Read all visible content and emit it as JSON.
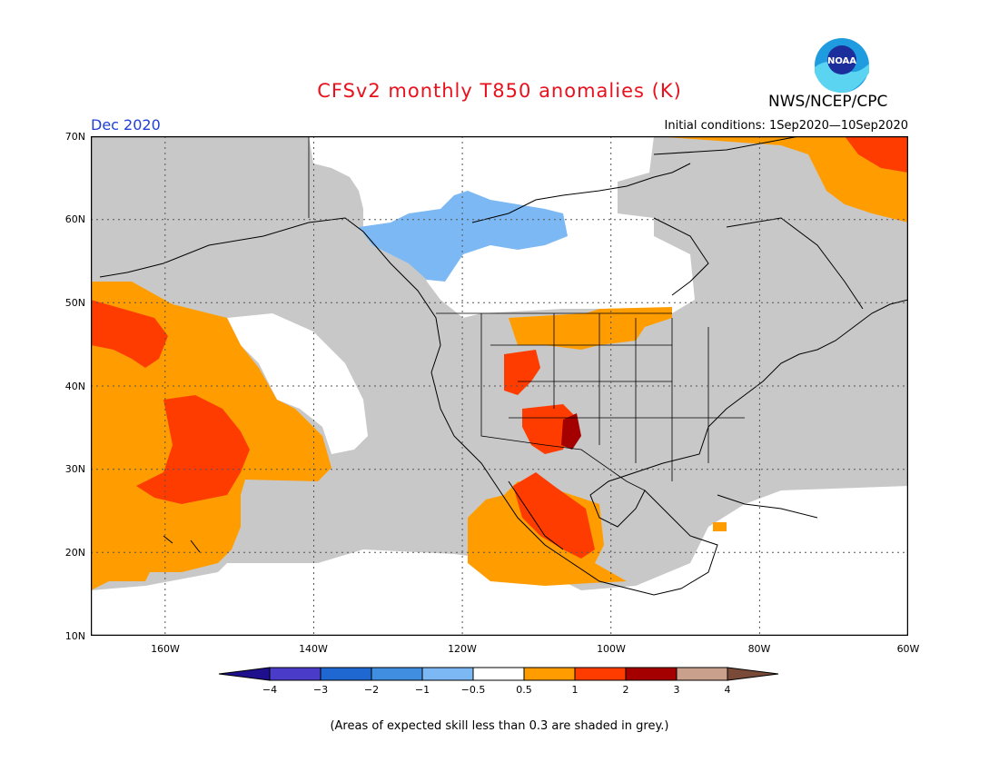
{
  "title": "CFSv2 monthly T850 anomalies (K)",
  "agency": "NWS/NCEP/CPC",
  "logo_text": "NOAA",
  "month_label": "Dec 2020",
  "initial_conditions": "Initial conditions: 1Sep2020—10Sep2020",
  "footnote": "(Areas of expected skill less than 0.3 are shaded in grey.)",
  "map": {
    "lon_range": [
      -170,
      -60
    ],
    "lat_range": [
      10,
      70
    ],
    "lat_labels": [
      "70N",
      "60N",
      "50N",
      "40N",
      "30N",
      "20N",
      "10N"
    ],
    "lon_labels": [
      "160W",
      "140W",
      "120W",
      "100W",
      "80W",
      "60W"
    ],
    "gridlines": "dotted",
    "skill_mask_color": "#c8c8c8"
  },
  "colorbar": {
    "labels": [
      "−4",
      "−3",
      "−2",
      "−1",
      "−0.5",
      "0.5",
      "1",
      "2",
      "3",
      "4"
    ],
    "colors": [
      "#1e0f8c",
      "#4a3cc8",
      "#1f67d1",
      "#3f8ee0",
      "#7cb9f4",
      "#ffffff",
      "#ff9d00",
      "#ff3c00",
      "#a50000",
      "#c8a08c",
      "#7a4a38"
    ]
  }
}
